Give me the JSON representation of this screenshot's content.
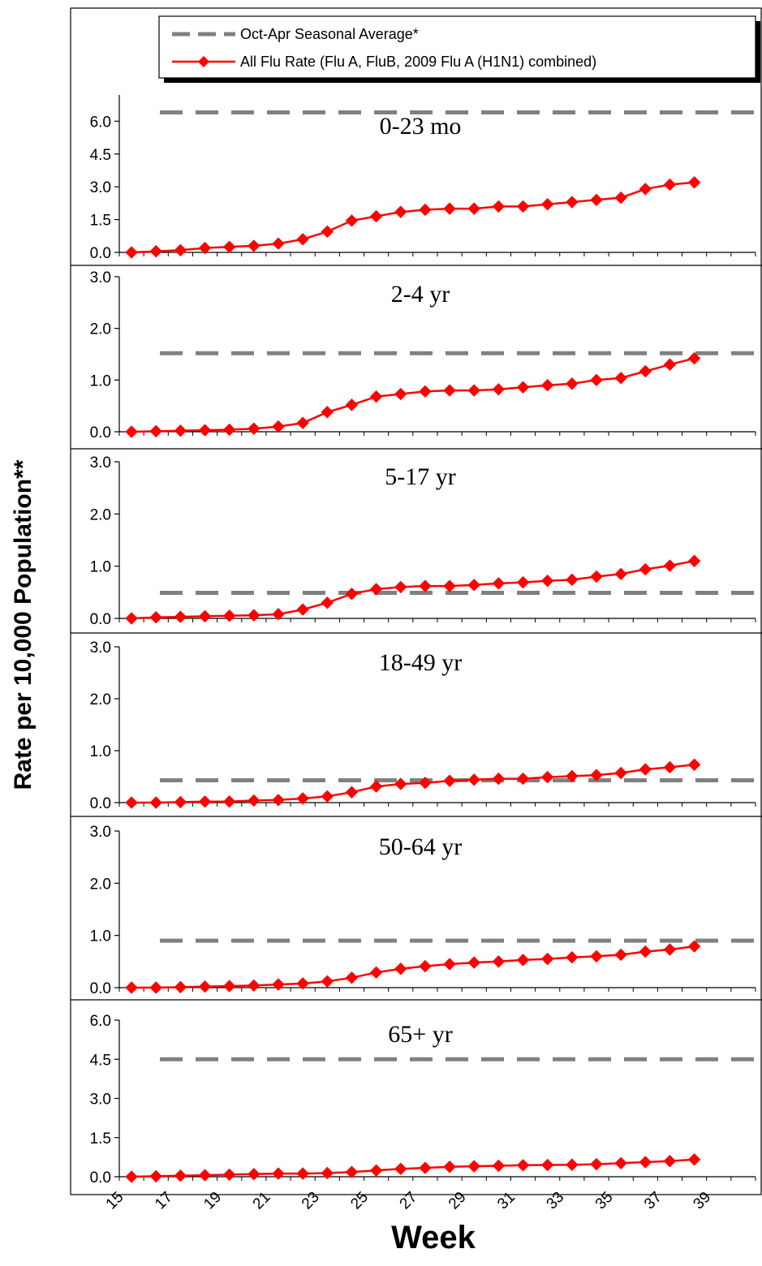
{
  "chart_data": {
    "type": "line",
    "ylabel": "Rate per 10,000 Population**",
    "xlabel": "Week",
    "x_tick_labels": [
      "15",
      "17",
      "19",
      "21",
      "23",
      "25",
      "27",
      "29",
      "31",
      "33",
      "35",
      "37",
      "39"
    ],
    "x_range": [
      15,
      41
    ],
    "weeks": [
      15,
      16,
      17,
      18,
      19,
      20,
      21,
      22,
      23,
      24,
      25,
      26,
      27,
      28,
      29,
      30,
      31,
      32,
      33,
      34,
      35,
      36,
      37,
      38
    ],
    "legend": {
      "position": "top-right",
      "entries": [
        {
          "key": "average",
          "label": "Oct-Apr Seasonal Average*",
          "style": "dashed",
          "color": "#808080"
        },
        {
          "key": "rate",
          "label": "All Flu Rate (Flu A, FluB, 2009 Flu A (H1N1) combined)",
          "style": "line-diamond",
          "color": "#ff0000"
        }
      ]
    },
    "panels": [
      {
        "title": "0-23 mo",
        "ylim": [
          0,
          7.2
        ],
        "yticks": [
          "0.0",
          "1.5",
          "3.0",
          "4.5",
          "6.0"
        ],
        "ytick_values": [
          0,
          1.5,
          3.0,
          4.5,
          6.0
        ],
        "seasonal_average": 6.4,
        "series": [
          {
            "name": "All Flu Rate (Flu A, FluB, 2009 Flu A (H1N1) combined)",
            "values": [
              0.0,
              0.05,
              0.1,
              0.2,
              0.25,
              0.3,
              0.4,
              0.6,
              0.95,
              1.45,
              1.65,
              1.85,
              1.95,
              2.0,
              2.0,
              2.1,
              2.1,
              2.2,
              2.3,
              2.4,
              2.5,
              2.9,
              3.1,
              3.2
            ]
          }
        ]
      },
      {
        "title": "2-4 yr",
        "ylim": [
          0,
          3.0
        ],
        "yticks": [
          "0.0",
          "1.0",
          "2.0",
          "3.0"
        ],
        "ytick_values": [
          0,
          1,
          2,
          3
        ],
        "seasonal_average": 1.52,
        "series": [
          {
            "name": "All Flu Rate (Flu A, FluB, 2009 Flu A (H1N1) combined)",
            "values": [
              0.0,
              0.01,
              0.02,
              0.03,
              0.04,
              0.06,
              0.1,
              0.17,
              0.38,
              0.52,
              0.68,
              0.73,
              0.78,
              0.8,
              0.8,
              0.82,
              0.86,
              0.9,
              0.93,
              1.0,
              1.04,
              1.17,
              1.3,
              1.42
            ]
          }
        ]
      },
      {
        "title": "5-17 yr",
        "ylim": [
          0,
          3.0
        ],
        "yticks": [
          "0.0",
          "1.0",
          "2.0",
          "3.0"
        ],
        "ytick_values": [
          0,
          1,
          2,
          3
        ],
        "seasonal_average": 0.49,
        "series": [
          {
            "name": "All Flu Rate (Flu A, FluB, 2009 Flu A (H1N1) combined)",
            "values": [
              0.0,
              0.02,
              0.03,
              0.04,
              0.05,
              0.06,
              0.08,
              0.17,
              0.3,
              0.47,
              0.56,
              0.6,
              0.62,
              0.62,
              0.64,
              0.67,
              0.69,
              0.72,
              0.74,
              0.8,
              0.85,
              0.94,
              1.01,
              1.1
            ]
          }
        ]
      },
      {
        "title": "18-49 yr",
        "ylim": [
          0,
          3.0
        ],
        "yticks": [
          "0.0",
          "1.0",
          "2.0",
          "3.0"
        ],
        "ytick_values": [
          0,
          1,
          2,
          3
        ],
        "seasonal_average": 0.43,
        "series": [
          {
            "name": "All Flu Rate (Flu A, FluB, 2009 Flu A (H1N1) combined)",
            "values": [
              0.0,
              0.0,
              0.01,
              0.02,
              0.02,
              0.04,
              0.05,
              0.08,
              0.12,
              0.2,
              0.31,
              0.36,
              0.38,
              0.42,
              0.44,
              0.46,
              0.46,
              0.49,
              0.51,
              0.53,
              0.57,
              0.64,
              0.68,
              0.73
            ]
          }
        ]
      },
      {
        "title": "50-64 yr",
        "ylim": [
          0,
          3.0
        ],
        "yticks": [
          "0.0",
          "1.0",
          "2.0",
          "3.0"
        ],
        "ytick_values": [
          0,
          1,
          2,
          3
        ],
        "seasonal_average": 0.9,
        "series": [
          {
            "name": "All Flu Rate (Flu A, FluB, 2009 Flu A (H1N1) combined)",
            "values": [
              0.0,
              0.0,
              0.01,
              0.02,
              0.03,
              0.04,
              0.06,
              0.08,
              0.12,
              0.19,
              0.29,
              0.36,
              0.41,
              0.45,
              0.48,
              0.5,
              0.53,
              0.55,
              0.58,
              0.6,
              0.63,
              0.69,
              0.73,
              0.79
            ]
          }
        ]
      },
      {
        "title": "65+ yr",
        "ylim": [
          0,
          6.0
        ],
        "yticks": [
          "0.0",
          "1.5",
          "3.0",
          "4.5",
          "6.0"
        ],
        "ytick_values": [
          0,
          1.5,
          3.0,
          4.5,
          6.0
        ],
        "seasonal_average": 4.5,
        "series": [
          {
            "name": "All Flu Rate (Flu A, FluB, 2009 Flu A (H1N1) combined)",
            "values": [
              0.0,
              0.02,
              0.04,
              0.06,
              0.08,
              0.1,
              0.12,
              0.12,
              0.14,
              0.18,
              0.24,
              0.3,
              0.34,
              0.38,
              0.4,
              0.42,
              0.44,
              0.45,
              0.46,
              0.48,
              0.52,
              0.56,
              0.6,
              0.66
            ]
          }
        ]
      }
    ]
  }
}
